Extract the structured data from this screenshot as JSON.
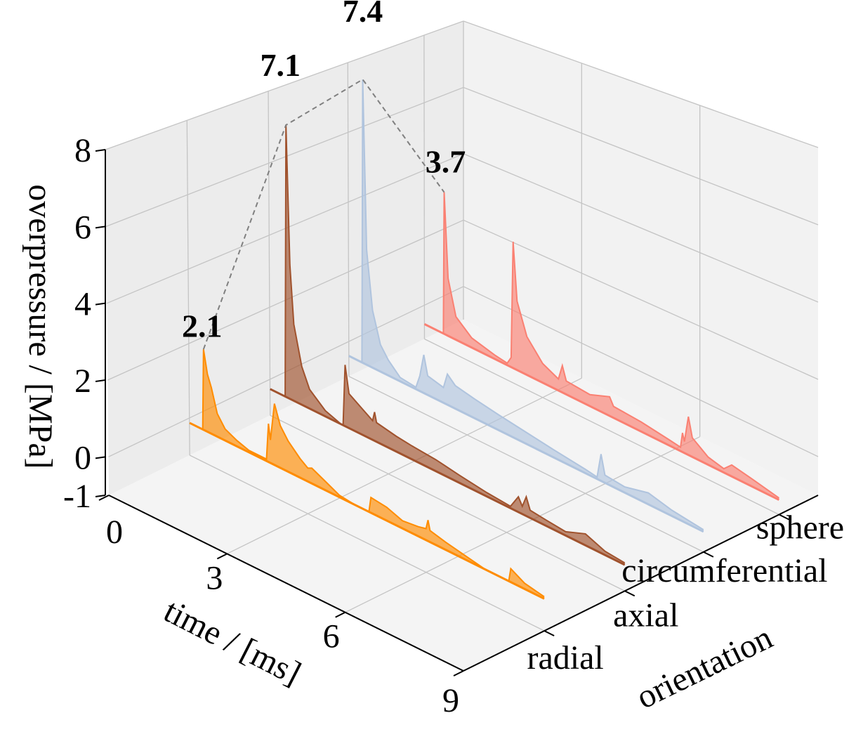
{
  "chart_data": {
    "type": "area",
    "projection": "3d-waterfall",
    "title": "",
    "xlabel": "time / [ms]",
    "ylabel": "orientation",
    "zlabel": "overpressure / [MPa]",
    "xlim": [
      0,
      9
    ],
    "zlim": [
      -1,
      8
    ],
    "x_ticks": [
      "0",
      "3",
      "6",
      "9"
    ],
    "z_ticks": [
      "-1",
      "0",
      "2",
      "4",
      "6",
      "8"
    ],
    "categories": [
      "radial",
      "axial",
      "circumferential",
      "sphere"
    ],
    "grid": true,
    "series": [
      {
        "name": "radial",
        "color": "#ff8c00",
        "t": [
          0,
          0.33,
          0.35,
          0.45,
          0.55,
          0.7,
          0.9,
          1.2,
          1.5,
          1.95,
          2.0,
          2.05,
          2.15,
          2.3,
          2.5,
          2.8,
          3.0,
          3.1,
          3.4,
          3.8,
          4.2,
          4.55,
          4.6,
          5.0,
          5.4,
          5.8,
          6.0,
          6.05,
          6.1,
          6.5,
          7.0,
          7.5,
          8.1,
          8.15,
          8.5,
          9.0
        ],
        "p": [
          0,
          0,
          2.1,
          1.5,
          1.2,
          0.6,
          0.3,
          0.15,
          0.05,
          0.05,
          1.0,
          0.6,
          1.6,
          1.1,
          0.8,
          0.5,
          0.35,
          0.4,
          0.25,
          0.05,
          0.0,
          0.0,
          0.4,
          0.35,
          0.2,
          0.25,
          0.3,
          0.55,
          0.3,
          0.2,
          0.1,
          0.0,
          0.0,
          0.35,
          0.15,
          0.05
        ]
      },
      {
        "name": "axial",
        "color": "#a0522d",
        "t": [
          0,
          0.38,
          0.4,
          0.5,
          0.6,
          0.8,
          1.0,
          1.4,
          1.8,
          1.85,
          1.9,
          2.0,
          2.3,
          2.6,
          2.65,
          2.7,
          3.2,
          3.6,
          4.2,
          4.8,
          5.5,
          6.1,
          6.3,
          6.4,
          6.5,
          6.6,
          7.0,
          7.5,
          8.0,
          8.5,
          9.0
        ],
        "p": [
          0,
          0,
          7.1,
          3.5,
          2.0,
          1.0,
          0.5,
          0.15,
          0.0,
          0.0,
          1.6,
          0.9,
          0.7,
          0.5,
          0.75,
          0.5,
          0.4,
          0.35,
          0.3,
          0.2,
          0.1,
          0.05,
          0.4,
          0.2,
          0.5,
          0.2,
          0.15,
          0.1,
          0.3,
          0.1,
          0.05
        ]
      },
      {
        "name": "circumferential",
        "color": "#b0c4de",
        "t": [
          0,
          0.33,
          0.35,
          0.45,
          0.6,
          0.8,
          1.0,
          1.3,
          1.7,
          1.8,
          1.9,
          2.0,
          2.4,
          2.5,
          2.7,
          3.2,
          3.8,
          4.5,
          5.2,
          6.0,
          6.3,
          6.4,
          6.5,
          7.0,
          7.6,
          8.2,
          9.0
        ],
        "p": [
          0,
          0,
          7.4,
          3.0,
          1.5,
          0.7,
          0.4,
          0.1,
          0.05,
          0.4,
          1.0,
          0.5,
          0.4,
          0.8,
          0.6,
          0.5,
          0.4,
          0.3,
          0.2,
          0.1,
          0.05,
          0.7,
          0.2,
          0.15,
          0.3,
          0.15,
          0.05
        ]
      },
      {
        "name": "sphere",
        "color": "#fa8072",
        "t": [
          0,
          0.48,
          0.5,
          0.6,
          0.8,
          1.2,
          1.8,
          2.1,
          2.2,
          2.25,
          2.35,
          2.6,
          3.0,
          3.4,
          3.5,
          3.6,
          4.2,
          4.7,
          4.8,
          5.5,
          6.2,
          6.5,
          6.55,
          6.6,
          6.7,
          6.8,
          7.2,
          7.6,
          7.8,
          8.3,
          9.0
        ],
        "p": [
          0,
          0,
          3.7,
          1.5,
          0.6,
          0.25,
          0.1,
          0.05,
          0.25,
          3.3,
          1.8,
          1.0,
          0.5,
          0.3,
          0.7,
          0.35,
          0.3,
          0.5,
          0.3,
          0.25,
          0.15,
          0.1,
          0.5,
          0.3,
          1.0,
          0.5,
          0.2,
          0.1,
          0.3,
          0.2,
          0.05
        ]
      }
    ],
    "annotations": [
      "2.1",
      "7.1",
      "7.4",
      "3.7"
    ],
    "peak_line": {
      "style": "dashed",
      "color": "#808080"
    }
  }
}
